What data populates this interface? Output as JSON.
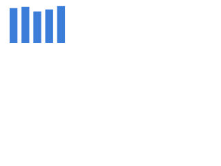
{
  "chart_data": {
    "type": "bar",
    "categories": [
      null,
      null,
      null,
      null,
      null
    ],
    "values": [
      52,
      54,
      47,
      50,
      55
    ],
    "color": "#3b7dd8",
    "ylim": [
      0,
      60
    ]
  }
}
